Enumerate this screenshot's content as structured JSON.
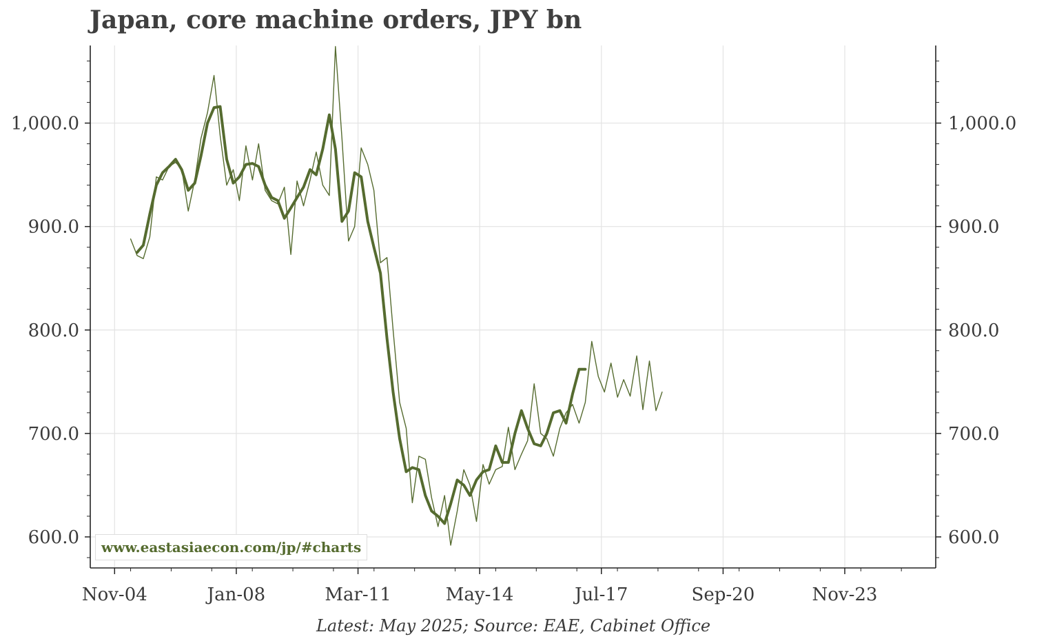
{
  "chart_data": {
    "type": "line",
    "title": "Japan, core machine orders, JPY bn",
    "footnote": "Latest: May 2025; Source: EAE, Cabinet Office",
    "watermark": "www.eastasiaecon.com/jp/#charts",
    "xlabel": "",
    "ylabel": "",
    "ylim": [
      570,
      1075
    ],
    "y_ticks": [
      {
        "value": 600,
        "label": "600.0"
      },
      {
        "value": 700,
        "label": "700.0"
      },
      {
        "value": 800,
        "label": "800.0"
      },
      {
        "value": 900,
        "label": "900.0"
      },
      {
        "value": 1000,
        "label": "1,000.0"
      }
    ],
    "x_ticks": [
      {
        "value": 2004.833,
        "label": "Nov-04"
      },
      {
        "value": 2008.0,
        "label": "Jan-08"
      },
      {
        "value": 2011.167,
        "label": "Mar-11"
      },
      {
        "value": 2014.333,
        "label": "May-14"
      },
      {
        "value": 2017.5,
        "label": "Jul-17"
      },
      {
        "value": 2020.667,
        "label": "Sep-20"
      },
      {
        "value": 2023.833,
        "label": "Nov-23"
      }
    ],
    "xlim": [
      2004.2,
      2026.2
    ],
    "grid": true,
    "colors": {
      "series": "#556b2f",
      "grid": "#e3e3e3",
      "axis": "#222222",
      "text": "#3a3a3a"
    },
    "series": [
      {
        "style": "thin",
        "points": [
          [
            2005.25,
            888
          ],
          [
            2005.42,
            872
          ],
          [
            2005.58,
            869
          ],
          [
            2005.75,
            890
          ],
          [
            2005.92,
            948
          ],
          [
            2006.08,
            945
          ],
          [
            2006.25,
            958
          ],
          [
            2006.42,
            962
          ],
          [
            2006.58,
            956
          ],
          [
            2006.75,
            915
          ],
          [
            2006.92,
            945
          ],
          [
            2007.08,
            985
          ],
          [
            2007.25,
            1010
          ],
          [
            2007.42,
            1046
          ],
          [
            2007.58,
            988
          ],
          [
            2007.75,
            940
          ],
          [
            2007.92,
            955
          ],
          [
            2008.08,
            925
          ],
          [
            2008.25,
            978
          ],
          [
            2008.42,
            945
          ],
          [
            2008.58,
            980
          ],
          [
            2008.75,
            935
          ],
          [
            2008.92,
            925
          ],
          [
            2009.08,
            922
          ],
          [
            2009.25,
            938
          ],
          [
            2009.42,
            873
          ],
          [
            2009.58,
            944
          ],
          [
            2009.75,
            920
          ],
          [
            2009.92,
            945
          ],
          [
            2010.08,
            972
          ],
          [
            2010.25,
            940
          ],
          [
            2010.42,
            930
          ],
          [
            2010.58,
            1074
          ],
          [
            2010.75,
            985
          ],
          [
            2010.92,
            886
          ],
          [
            2011.08,
            900
          ],
          [
            2011.25,
            976
          ],
          [
            2011.42,
            960
          ],
          [
            2011.58,
            935
          ],
          [
            2011.75,
            865
          ],
          [
            2011.92,
            870
          ],
          [
            2012.08,
            800
          ],
          [
            2012.25,
            730
          ],
          [
            2012.42,
            705
          ],
          [
            2012.58,
            633
          ],
          [
            2012.75,
            678
          ],
          [
            2012.92,
            675
          ],
          [
            2013.08,
            638
          ],
          [
            2013.25,
            610
          ],
          [
            2013.42,
            640
          ],
          [
            2013.58,
            592
          ],
          [
            2013.75,
            625
          ],
          [
            2013.92,
            665
          ],
          [
            2014.08,
            650
          ],
          [
            2014.25,
            615
          ],
          [
            2014.42,
            670
          ],
          [
            2014.58,
            651
          ],
          [
            2014.75,
            665
          ],
          [
            2014.92,
            668
          ],
          [
            2015.08,
            706
          ],
          [
            2015.25,
            665
          ],
          [
            2015.42,
            680
          ],
          [
            2015.58,
            693
          ],
          [
            2015.75,
            748
          ],
          [
            2015.92,
            700
          ],
          [
            2016.08,
            695
          ],
          [
            2016.25,
            678
          ],
          [
            2016.42,
            705
          ],
          [
            2016.58,
            720
          ],
          [
            2016.75,
            728
          ],
          [
            2016.92,
            710
          ],
          [
            2017.08,
            730
          ],
          [
            2017.25,
            789
          ],
          [
            2017.42,
            755
          ],
          [
            2017.58,
            740
          ],
          [
            2017.75,
            768
          ],
          [
            2017.92,
            735
          ],
          [
            2018.08,
            752
          ],
          [
            2018.25,
            736
          ],
          [
            2018.42,
            775
          ],
          [
            2018.58,
            723
          ],
          [
            2018.75,
            770
          ],
          [
            2018.92,
            722
          ],
          [
            2019.08,
            740
          ]
        ]
      },
      {
        "style": "thick",
        "points": [
          [
            2005.42,
            875
          ],
          [
            2005.58,
            882
          ],
          [
            2005.75,
            912
          ],
          [
            2005.92,
            940
          ],
          [
            2006.08,
            952
          ],
          [
            2006.25,
            958
          ],
          [
            2006.42,
            965
          ],
          [
            2006.58,
            955
          ],
          [
            2006.75,
            935
          ],
          [
            2006.92,
            942
          ],
          [
            2007.08,
            968
          ],
          [
            2007.25,
            1000
          ],
          [
            2007.42,
            1015
          ],
          [
            2007.58,
            1016
          ],
          [
            2007.75,
            965
          ],
          [
            2007.92,
            942
          ],
          [
            2008.08,
            948
          ],
          [
            2008.25,
            960
          ],
          [
            2008.42,
            961
          ],
          [
            2008.58,
            958
          ],
          [
            2008.75,
            940
          ],
          [
            2008.92,
            928
          ],
          [
            2009.08,
            925
          ],
          [
            2009.25,
            908
          ],
          [
            2009.42,
            918
          ],
          [
            2009.58,
            928
          ],
          [
            2009.75,
            938
          ],
          [
            2009.92,
            955
          ],
          [
            2010.08,
            950
          ],
          [
            2010.25,
            975
          ],
          [
            2010.42,
            1008
          ],
          [
            2010.58,
            975
          ],
          [
            2010.75,
            905
          ],
          [
            2010.92,
            915
          ],
          [
            2011.08,
            952
          ],
          [
            2011.25,
            948
          ],
          [
            2011.42,
            905
          ],
          [
            2011.58,
            880
          ],
          [
            2011.75,
            855
          ],
          [
            2011.92,
            792
          ],
          [
            2012.08,
            740
          ],
          [
            2012.25,
            695
          ],
          [
            2012.42,
            663
          ],
          [
            2012.58,
            667
          ],
          [
            2012.75,
            665
          ],
          [
            2012.92,
            640
          ],
          [
            2013.08,
            625
          ],
          [
            2013.25,
            620
          ],
          [
            2013.42,
            613
          ],
          [
            2013.58,
            632
          ],
          [
            2013.75,
            655
          ],
          [
            2013.92,
            650
          ],
          [
            2014.08,
            640
          ],
          [
            2014.25,
            655
          ],
          [
            2014.42,
            663
          ],
          [
            2014.58,
            665
          ],
          [
            2014.75,
            688
          ],
          [
            2014.92,
            672
          ],
          [
            2015.08,
            672
          ],
          [
            2015.25,
            700
          ],
          [
            2015.42,
            722
          ],
          [
            2015.58,
            705
          ],
          [
            2015.75,
            690
          ],
          [
            2015.92,
            688
          ],
          [
            2016.08,
            700
          ],
          [
            2016.25,
            720
          ],
          [
            2016.42,
            722
          ],
          [
            2016.58,
            710
          ],
          [
            2016.75,
            738
          ],
          [
            2016.92,
            762
          ],
          [
            2017.08,
            762
          ]
        ]
      }
    ]
  }
}
